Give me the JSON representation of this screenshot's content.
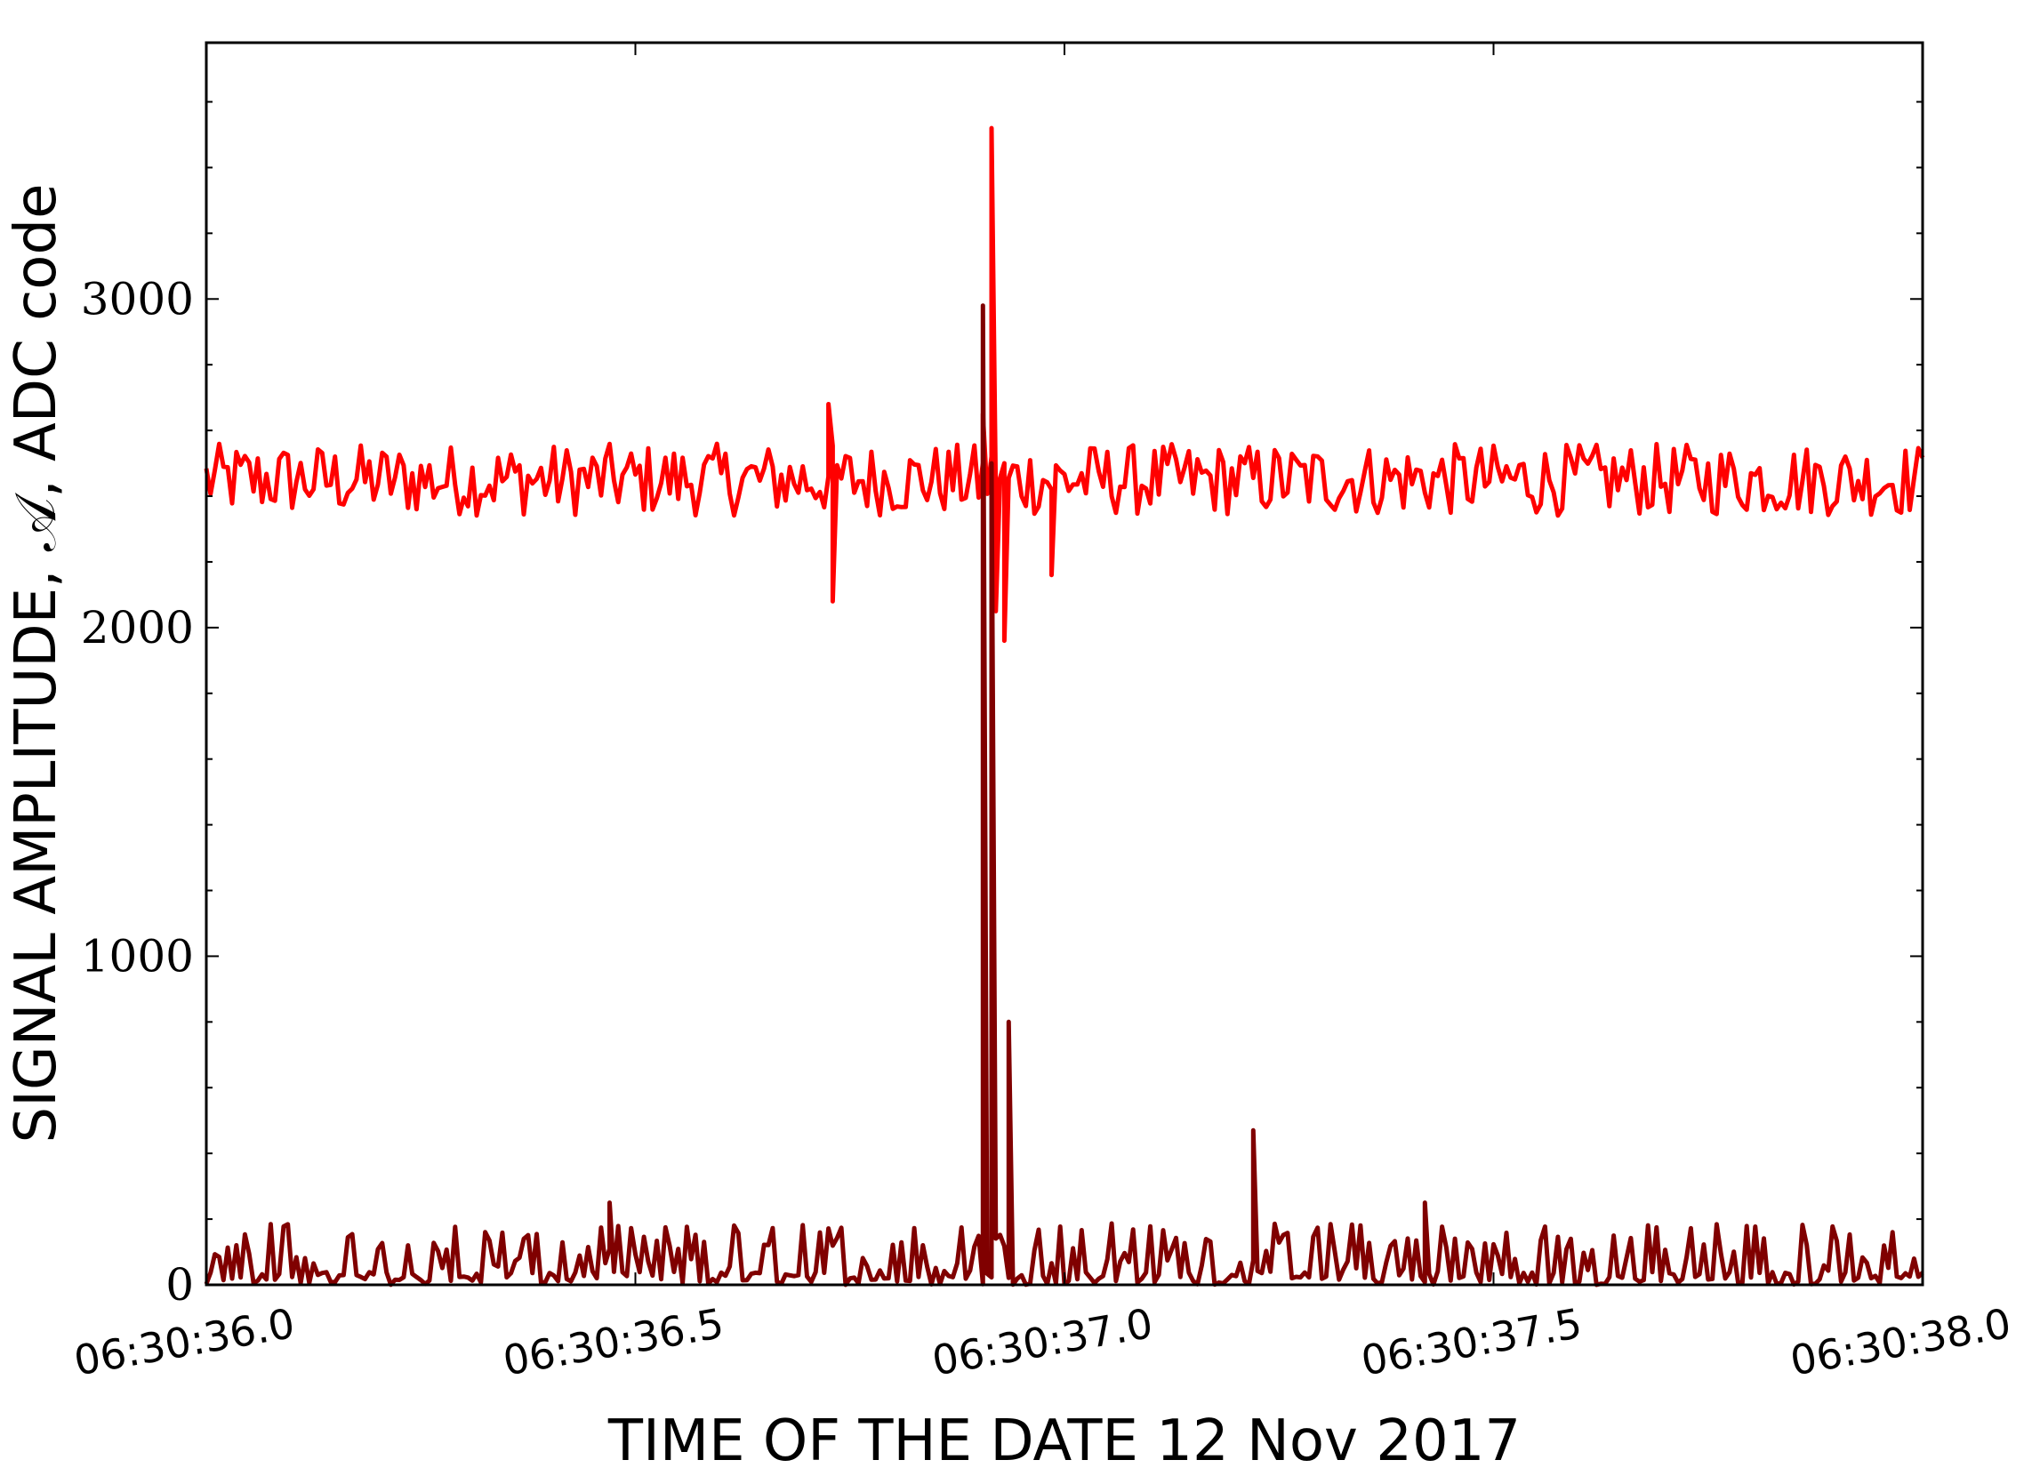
{
  "chart_data": {
    "type": "line",
    "title": "",
    "xlabel": "TIME OF THE DATE 12 Nov 2017",
    "ylabel": "SIGNAL AMPLITUDE, 𝒜, ADC code",
    "x_unit": "seconds after 06:30:00",
    "xlim": [
      36.0,
      38.0
    ],
    "ylim": [
      0,
      3780
    ],
    "x_tick_values": [
      36.0,
      36.5,
      37.0,
      37.5,
      38.0
    ],
    "x_tick_labels": [
      "06:30:36.0",
      "06:30:36.5",
      "06:30:37.0",
      "06:30:37.5",
      "06:30:38.0"
    ],
    "y_tick_values": [
      0,
      1000,
      2000,
      3000
    ],
    "y_tick_labels": [
      "0",
      "1000",
      "2000",
      "3000"
    ],
    "grid": false,
    "legend": "none",
    "series": [
      {
        "color": "#ff0000",
        "baseline": 2450,
        "noise_amplitude": 110,
        "features": [
          {
            "t": 36.725,
            "value": 2680
          },
          {
            "t": 36.73,
            "value": 2080
          },
          {
            "t": 36.905,
            "value": 2650
          },
          {
            "t": 36.915,
            "value": 3520
          },
          {
            "t": 36.92,
            "value": 2050
          },
          {
            "t": 36.93,
            "value": 1960
          },
          {
            "t": 36.985,
            "value": 2160
          }
        ]
      },
      {
        "color": "#800000",
        "baseline": 40,
        "noise_amplitude": 100,
        "features": [
          {
            "t": 36.905,
            "value": 2980
          },
          {
            "t": 36.915,
            "value": 2500
          },
          {
            "t": 36.935,
            "value": 800
          },
          {
            "t": 37.22,
            "value": 470
          },
          {
            "t": 36.47,
            "value": 250
          },
          {
            "t": 37.42,
            "value": 250
          }
        ]
      }
    ]
  }
}
